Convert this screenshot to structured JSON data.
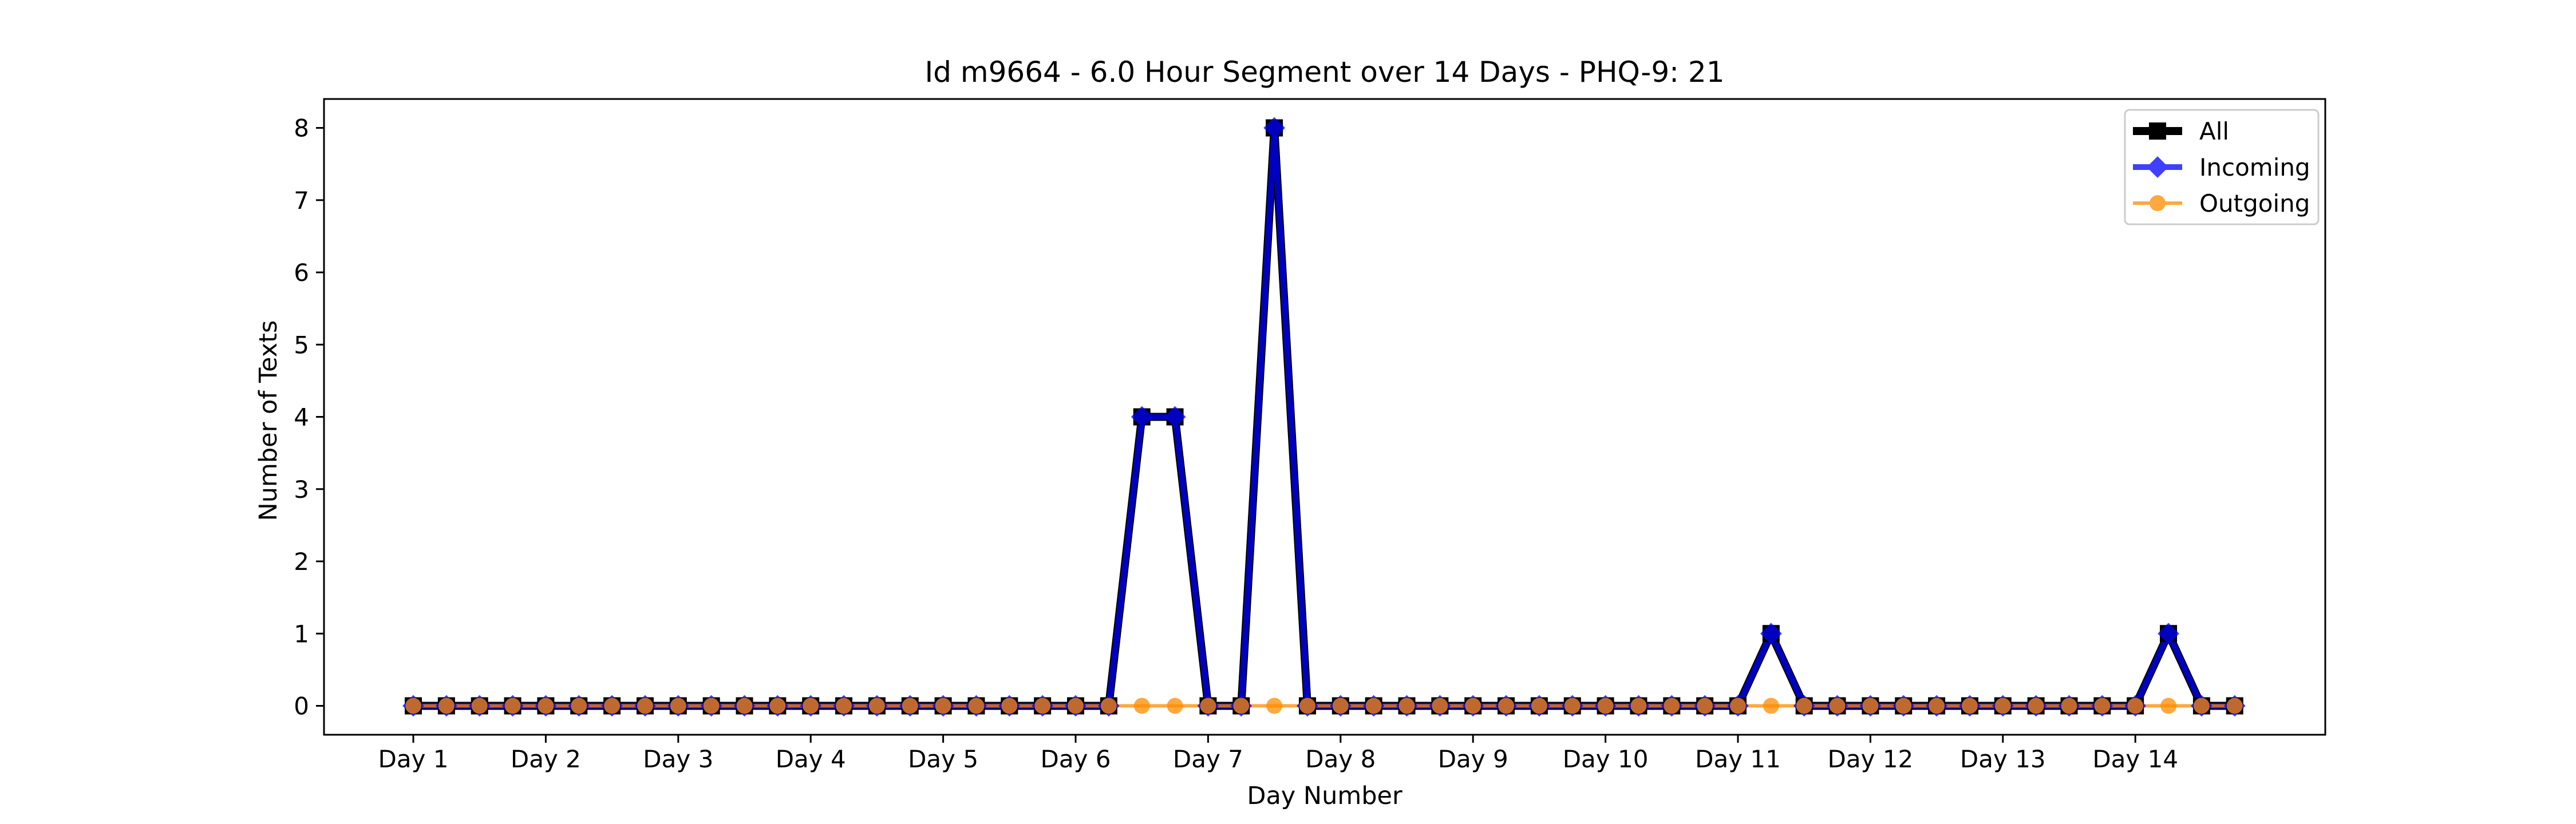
{
  "chart_data": {
    "type": "line",
    "title": "Id m9664 - 6.0 Hour Segment over 14 Days - PHQ-9: 21",
    "xlabel": "Day Number",
    "ylabel": "Number of Texts",
    "x_tick_labels": [
      "Day 1",
      "Day 2",
      "Day 3",
      "Day 4",
      "Day 5",
      "Day 6",
      "Day 7",
      "Day 8",
      "Day 9",
      "Day 10",
      "Day 11",
      "Day 12",
      "Day 13",
      "Day 14"
    ],
    "segments_per_day": 4,
    "ylim": [
      -0.4,
      8.4
    ],
    "y_ticks": [
      0,
      1,
      2,
      3,
      4,
      5,
      6,
      7,
      8
    ],
    "grid": false,
    "legend_position": "top-right",
    "series": [
      {
        "name": "All",
        "color": "#000000",
        "marker": "square",
        "values": [
          0,
          0,
          0,
          0,
          0,
          0,
          0,
          0,
          0,
          0,
          0,
          0,
          0,
          0,
          0,
          0,
          0,
          0,
          0,
          0,
          0,
          0,
          4,
          4,
          0,
          0,
          8,
          0,
          0,
          0,
          0,
          0,
          0,
          0,
          0,
          0,
          0,
          0,
          0,
          0,
          0,
          1,
          0,
          0,
          0,
          0,
          0,
          0,
          0,
          0,
          0,
          0,
          0,
          1,
          0,
          0
        ]
      },
      {
        "name": "Incoming",
        "color": "#0000ff",
        "marker": "diamond",
        "values": [
          0,
          0,
          0,
          0,
          0,
          0,
          0,
          0,
          0,
          0,
          0,
          0,
          0,
          0,
          0,
          0,
          0,
          0,
          0,
          0,
          0,
          0,
          4,
          4,
          0,
          0,
          8,
          0,
          0,
          0,
          0,
          0,
          0,
          0,
          0,
          0,
          0,
          0,
          0,
          0,
          0,
          1,
          0,
          0,
          0,
          0,
          0,
          0,
          0,
          0,
          0,
          0,
          0,
          1,
          0,
          0
        ]
      },
      {
        "name": "Outgoing",
        "color": "#ff8c00",
        "marker": "circle",
        "values": [
          0,
          0,
          0,
          0,
          0,
          0,
          0,
          0,
          0,
          0,
          0,
          0,
          0,
          0,
          0,
          0,
          0,
          0,
          0,
          0,
          0,
          0,
          0,
          0,
          0,
          0,
          0,
          0,
          0,
          0,
          0,
          0,
          0,
          0,
          0,
          0,
          0,
          0,
          0,
          0,
          0,
          0,
          0,
          0,
          0,
          0,
          0,
          0,
          0,
          0,
          0,
          0,
          0,
          0,
          0,
          0
        ]
      }
    ]
  }
}
